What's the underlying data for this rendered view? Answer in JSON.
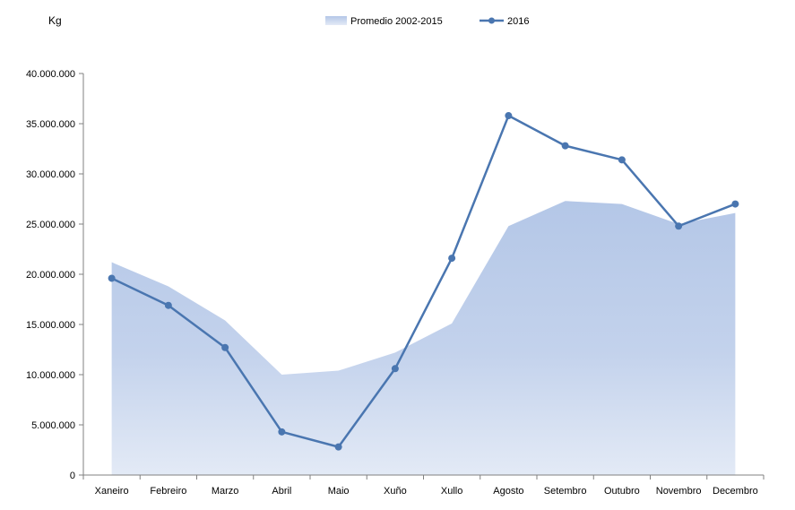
{
  "chart_data": {
    "type": "line",
    "ylabel": "Kg",
    "categories": [
      "Xaneiro",
      "Febreiro",
      "Marzo",
      "Abril",
      "Maio",
      "Xuño",
      "Xullo",
      "Agosto",
      "Setembro",
      "Outubro",
      "Novembro",
      "Decembro"
    ],
    "ylim": [
      0,
      40000000
    ],
    "yticks": [
      0,
      5000000,
      10000000,
      15000000,
      20000000,
      25000000,
      30000000,
      35000000,
      40000000
    ],
    "ytick_labels": [
      "0",
      "5.000.000",
      "10.000.000",
      "15.000.000",
      "20.000.000",
      "25.000.000",
      "30.000.000",
      "35.000.000",
      "40.000.000"
    ],
    "grid": false,
    "legend_position": "top-center",
    "series": [
      {
        "name": "Promedio 2002-2015",
        "type": "area",
        "color": "#b4c7e7",
        "values": [
          21200000,
          18800000,
          15400000,
          10000000,
          10400000,
          12200000,
          15100000,
          24800000,
          27300000,
          27000000,
          25000000,
          26100000
        ]
      },
      {
        "name": "2016",
        "type": "line",
        "color": "#4a76b0",
        "values": [
          19600000,
          16900000,
          12700000,
          4300000,
          2800000,
          10600000,
          21600000,
          35800000,
          32800000,
          31400000,
          24800000,
          27000000
        ]
      }
    ]
  }
}
